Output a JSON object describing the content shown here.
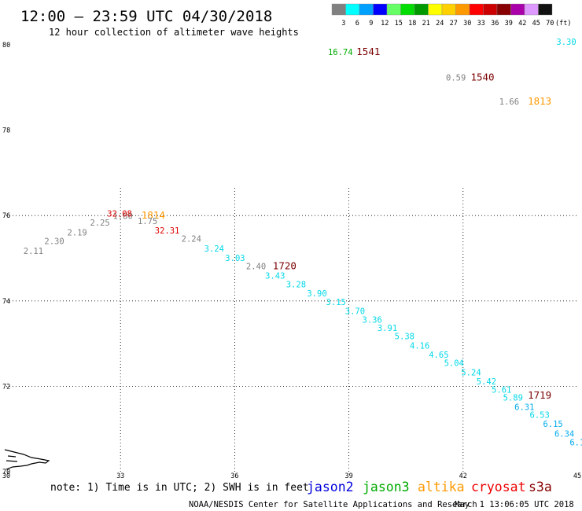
{
  "header": {
    "title": "12:00 – 23:59 UTC 04/30/2018",
    "subtitle": "12 hour collection of altimeter wave heights"
  },
  "scale": {
    "unit_label": "(ft)",
    "items": [
      {
        "label": "3",
        "color": "#808080"
      },
      {
        "label": "6",
        "color": "#00ffff"
      },
      {
        "label": "9",
        "color": "#00a0ff"
      },
      {
        "label": "12",
        "color": "#0000ff"
      },
      {
        "label": "15",
        "color": "#66ff66"
      },
      {
        "label": "18",
        "color": "#00dd00"
      },
      {
        "label": "21",
        "color": "#009900"
      },
      {
        "label": "24",
        "color": "#ffff00"
      },
      {
        "label": "27",
        "color": "#ffd000"
      },
      {
        "label": "30",
        "color": "#ff9900"
      },
      {
        "label": "33",
        "color": "#ff0000"
      },
      {
        "label": "36",
        "color": "#cc0000"
      },
      {
        "label": "39",
        "color": "#880000"
      },
      {
        "label": "42",
        "color": "#aa00aa"
      },
      {
        "label": "45",
        "color": "#dd99ff"
      },
      {
        "label": "70",
        "color": "#111111"
      }
    ]
  },
  "map": {
    "lon_range": [
      30,
      45
    ],
    "lat_range": [
      70,
      80
    ],
    "lon_ticks": [
      "30",
      "33",
      "36",
      "39",
      "42",
      "45"
    ],
    "lat_ticks": [
      "70",
      "72",
      "74",
      "76",
      "78",
      "80"
    ],
    "grid_lons": [
      33,
      36,
      39,
      42
    ],
    "grid_lats": [
      72,
      74,
      76
    ],
    "readings": [
      {
        "text": "16.74",
        "lon": 38.45,
        "lat": 79.76,
        "color": "#00aa00"
      },
      {
        "text": "1541",
        "lon": 39.2,
        "lat": 79.76,
        "color": "#7a0000",
        "time": true
      },
      {
        "text": "0.59",
        "lon": 41.55,
        "lat": 79.16,
        "color": "#808080"
      },
      {
        "text": "1540",
        "lon": 42.2,
        "lat": 79.16,
        "color": "#7a0000",
        "time": true
      },
      {
        "text": "3.30",
        "lon": 44.45,
        "lat": 80.0,
        "color": "#00d8e8"
      },
      {
        "text": "1.66",
        "lon": 42.95,
        "lat": 78.6,
        "color": "#808080"
      },
      {
        "text": "1813",
        "lon": 43.7,
        "lat": 78.6,
        "color": "#ff9900",
        "time": true
      },
      {
        "text": "2.11",
        "lon": 30.45,
        "lat": 75.1,
        "color": "#808080"
      },
      {
        "text": "2.30",
        "lon": 31.0,
        "lat": 75.33,
        "color": "#808080"
      },
      {
        "text": "2.19",
        "lon": 31.6,
        "lat": 75.53,
        "color": "#808080"
      },
      {
        "text": "2.25",
        "lon": 32.2,
        "lat": 75.76,
        "color": "#808080"
      },
      {
        "text": "1.80",
        "lon": 32.8,
        "lat": 75.92,
        "color": "#808080"
      },
      {
        "text": "32.08",
        "lon": 32.65,
        "lat": 75.98,
        "color": "#dd0000"
      },
      {
        "text": "1814",
        "lon": 33.55,
        "lat": 75.93,
        "color": "#ff9900",
        "time": true
      },
      {
        "text": "1.75",
        "lon": 33.45,
        "lat": 75.8,
        "color": "#808080"
      },
      {
        "text": "32.31",
        "lon": 33.9,
        "lat": 75.58,
        "color": "#dd0000"
      },
      {
        "text": "2.24",
        "lon": 34.6,
        "lat": 75.39,
        "color": "#808080"
      },
      {
        "text": "3.24",
        "lon": 35.2,
        "lat": 75.16,
        "color": "#00d8e8"
      },
      {
        "text": "3.03",
        "lon": 35.75,
        "lat": 74.94,
        "color": "#00d8e8"
      },
      {
        "text": "2.40",
        "lon": 36.3,
        "lat": 74.74,
        "color": "#808080"
      },
      {
        "text": "1720",
        "lon": 37.0,
        "lat": 74.74,
        "color": "#7a0000",
        "time": true
      },
      {
        "text": "3.43",
        "lon": 36.8,
        "lat": 74.52,
        "color": "#00d8e8"
      },
      {
        "text": "3.28",
        "lon": 37.35,
        "lat": 74.32,
        "color": "#00d8e8"
      },
      {
        "text": "3.90",
        "lon": 37.9,
        "lat": 74.11,
        "color": "#00d8e8"
      },
      {
        "text": "3.15",
        "lon": 38.4,
        "lat": 73.9,
        "color": "#00d8e8"
      },
      {
        "text": "3.70",
        "lon": 38.9,
        "lat": 73.69,
        "color": "#00d8e8"
      },
      {
        "text": "3.36",
        "lon": 39.35,
        "lat": 73.49,
        "color": "#00d8e8"
      },
      {
        "text": "3.91",
        "lon": 39.75,
        "lat": 73.3,
        "color": "#00d8e8"
      },
      {
        "text": "5.38",
        "lon": 40.2,
        "lat": 73.1,
        "color": "#00d8e8"
      },
      {
        "text": "4.16",
        "lon": 40.6,
        "lat": 72.88,
        "color": "#00d8e8"
      },
      {
        "text": "4.65",
        "lon": 41.1,
        "lat": 72.67,
        "color": "#00d8e8"
      },
      {
        "text": "5.04",
        "lon": 41.5,
        "lat": 72.48,
        "color": "#00d8e8"
      },
      {
        "text": "5.24",
        "lon": 41.95,
        "lat": 72.26,
        "color": "#00d8e8"
      },
      {
        "text": "5.42",
        "lon": 42.35,
        "lat": 72.04,
        "color": "#00d8e8"
      },
      {
        "text": "5.61",
        "lon": 42.75,
        "lat": 71.85,
        "color": "#00d8e8"
      },
      {
        "text": "5.89",
        "lon": 43.05,
        "lat": 71.67,
        "color": "#00d8e8"
      },
      {
        "text": "6.31",
        "lon": 43.35,
        "lat": 71.45,
        "color": "#00aaee"
      },
      {
        "text": "1719",
        "lon": 43.7,
        "lat": 71.71,
        "color": "#7a0000",
        "time": true
      },
      {
        "text": "6.53",
        "lon": 43.75,
        "lat": 71.26,
        "color": "#00d8e8"
      },
      {
        "text": "6.15",
        "lon": 44.1,
        "lat": 71.05,
        "color": "#00aaee"
      },
      {
        "text": "6.34",
        "lon": 44.4,
        "lat": 70.82,
        "color": "#00aaee"
      },
      {
        "text": "6.1",
        "lon": 44.8,
        "lat": 70.62,
        "color": "#00aaee"
      }
    ]
  },
  "footer": {
    "note": "note: 1) Time is in UTC; 2) SWH is in feet",
    "satellites": [
      {
        "name": "jason2",
        "color": "#0000dd"
      },
      {
        "name": "jason3",
        "color": "#00aa00"
      },
      {
        "name": "altika",
        "color": "#ff9900"
      },
      {
        "name": "cryosat",
        "color": "#ee0000"
      },
      {
        "name": "s3a",
        "color": "#880000"
      }
    ],
    "credit": "NOAA/NESDIS Center for Satellite Applications and Research",
    "timestamp": "May  1 13:06:05 UTC 2018"
  }
}
